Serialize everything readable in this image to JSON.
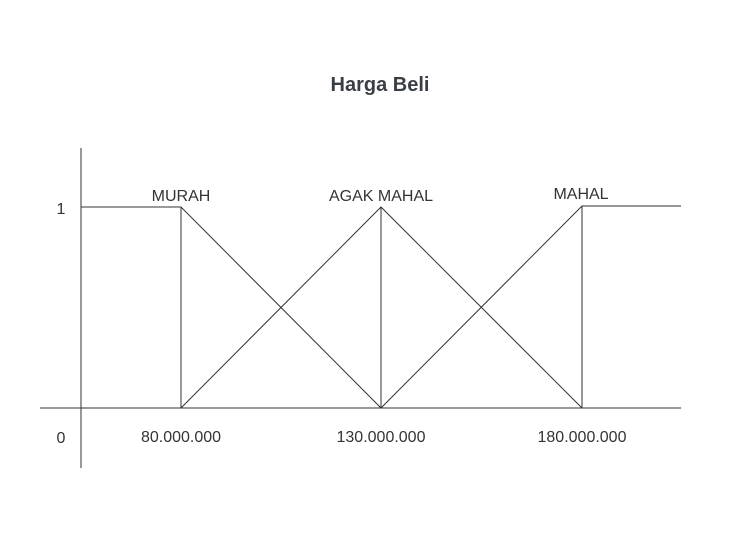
{
  "title": "Harga Beli",
  "y_ticks": {
    "top": "1",
    "bottom": "0"
  },
  "x_ticks": [
    "80.000.000",
    "130.000.000",
    "180.000.000"
  ],
  "sets": [
    {
      "name": "MURAH",
      "points": [
        [
          0,
          1
        ],
        [
          80000000,
          1
        ],
        [
          130000000,
          0
        ]
      ]
    },
    {
      "name": "AGAK MAHAL",
      "points": [
        [
          80000000,
          0
        ],
        [
          130000000,
          1
        ],
        [
          180000000,
          0
        ]
      ]
    },
    {
      "name": "MAHAL",
      "points": [
        [
          130000000,
          0
        ],
        [
          180000000,
          1
        ]
      ]
    }
  ]
}
